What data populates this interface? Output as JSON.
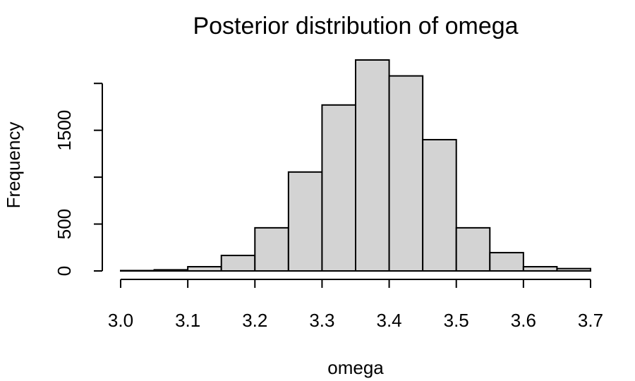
{
  "chart_data": {
    "type": "bar",
    "title": "Posterior distribution of omega",
    "xlabel": "omega",
    "ylabel": "Frequency",
    "bin_edges": [
      3.0,
      3.05,
      3.1,
      3.15,
      3.2,
      3.25,
      3.3,
      3.35,
      3.4,
      3.45,
      3.5,
      3.55,
      3.6,
      3.65,
      3.7
    ],
    "values": [
      4,
      12,
      45,
      165,
      460,
      1055,
      1770,
      2250,
      2080,
      1400,
      460,
      195,
      45,
      25
    ],
    "xlim": [
      3.0,
      3.7
    ],
    "ylim": [
      0,
      2250
    ],
    "x_ticks": [
      "3.0",
      "3.1",
      "3.2",
      "3.3",
      "3.4",
      "3.5",
      "3.6",
      "3.7"
    ],
    "y_ticks": [
      0,
      500,
      1000,
      1500,
      2000
    ],
    "y_tick_labels": [
      "0",
      "500",
      "",
      "1500",
      ""
    ],
    "bar_color": "#d3d3d3",
    "grid": false,
    "legend": "none"
  }
}
